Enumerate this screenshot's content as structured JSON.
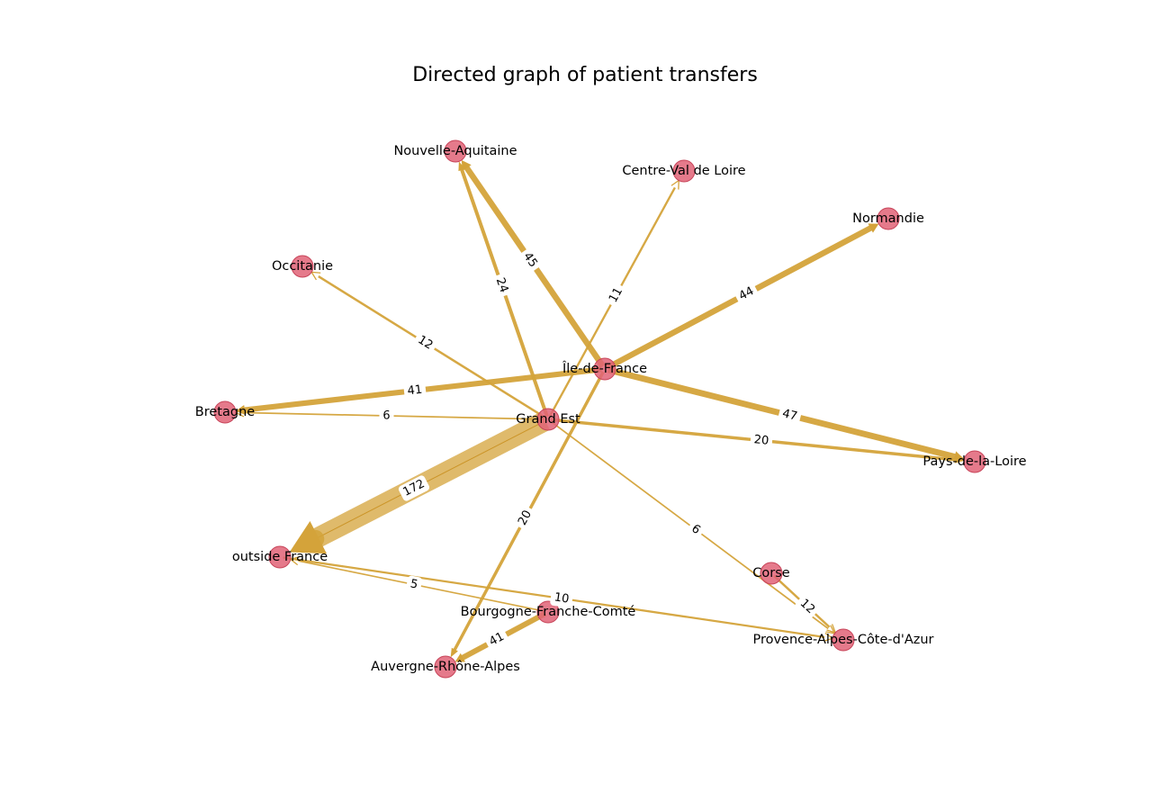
{
  "title": "Directed graph of patient transfers",
  "colors": {
    "edge": "#d4a33a",
    "node_fill": "#e06377",
    "node_stroke": "#c8455a"
  },
  "nodes": [
    {
      "id": "idf",
      "label": "Île-de-France"
    },
    {
      "id": "ge",
      "label": "Grand Est"
    },
    {
      "id": "na",
      "label": "Nouvelle-Aquitaine"
    },
    {
      "id": "cvl",
      "label": "Centre-Val de Loire"
    },
    {
      "id": "norm",
      "label": "Normandie"
    },
    {
      "id": "occ",
      "label": "Occitanie"
    },
    {
      "id": "bret",
      "label": "Bretagne"
    },
    {
      "id": "pdl",
      "label": "Pays-de-la-Loire"
    },
    {
      "id": "out",
      "label": "outside France"
    },
    {
      "id": "corse",
      "label": "Corse"
    },
    {
      "id": "bfc",
      "label": "Bourgogne-Franche-Comté"
    },
    {
      "id": "paca",
      "label": "Provence-Alpes-Côte-d'Azur"
    },
    {
      "id": "ara",
      "label": "Auvergne-Rhône-Alpes"
    }
  ],
  "edges": [
    {
      "source": "ge",
      "target": "out",
      "weight": 172,
      "label": "172"
    },
    {
      "source": "idf",
      "target": "pdl",
      "weight": 47,
      "label": "47"
    },
    {
      "source": "idf",
      "target": "na",
      "weight": 45,
      "label": "45"
    },
    {
      "source": "idf",
      "target": "norm",
      "weight": 44,
      "label": "44"
    },
    {
      "source": "idf",
      "target": "bret",
      "weight": 41,
      "label": "41"
    },
    {
      "source": "bfc",
      "target": "ara",
      "weight": 41,
      "label": "41"
    },
    {
      "source": "ge",
      "target": "na",
      "weight": 24,
      "label": "24"
    },
    {
      "source": "ge",
      "target": "pdl",
      "weight": 20,
      "label": "20"
    },
    {
      "source": "idf",
      "target": "ara",
      "weight": 20,
      "label": "20"
    },
    {
      "source": "ge",
      "target": "occ",
      "weight": 12,
      "label": "12"
    },
    {
      "source": "corse",
      "target": "paca",
      "weight": 12,
      "label": "12"
    },
    {
      "source": "ge",
      "target": "cvl",
      "weight": 11,
      "label": "11"
    },
    {
      "source": "out",
      "target": "paca",
      "weight": 10,
      "label": "10"
    },
    {
      "source": "ge",
      "target": "bret",
      "weight": 6,
      "label": "6"
    },
    {
      "source": "ge",
      "target": "paca",
      "weight": 6,
      "label": "6"
    },
    {
      "source": "bfc",
      "target": "out",
      "weight": 5,
      "label": "5"
    }
  ]
}
